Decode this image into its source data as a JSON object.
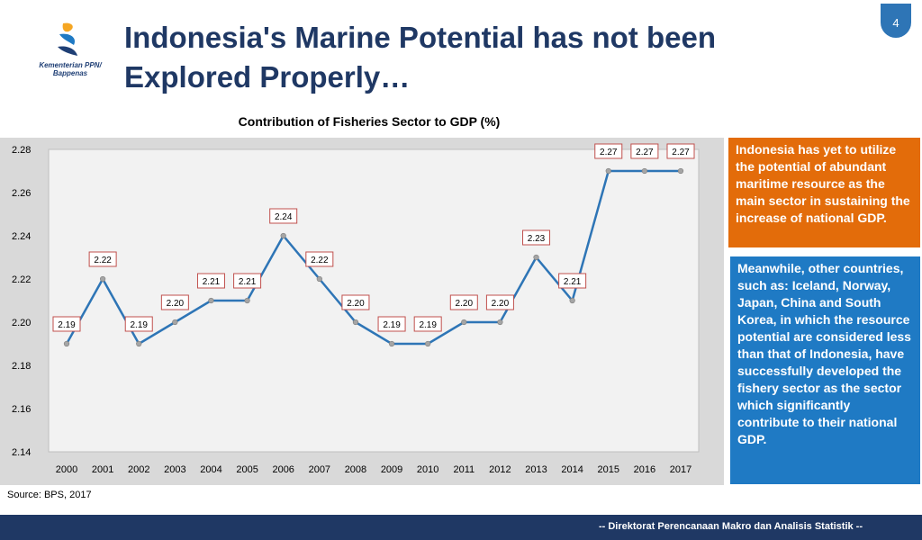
{
  "header": {
    "logo_text_line1": "Kementerian PPN/",
    "logo_text_line2": "Bappenas",
    "title": "Indonesia's Marine Potential has not been Explored Properly…",
    "page_number": "4"
  },
  "chart_data": {
    "type": "line",
    "title": "Contribution of Fisheries Sector to GDP (%)",
    "xlabel": "",
    "ylabel": "",
    "categories": [
      "2000",
      "2001",
      "2002",
      "2003",
      "2004",
      "2005",
      "2006",
      "2007",
      "2008",
      "2009",
      "2010",
      "2011",
      "2012",
      "2013",
      "2014",
      "2015",
      "2016",
      "2017"
    ],
    "values": [
      2.19,
      2.22,
      2.19,
      2.2,
      2.21,
      2.21,
      2.24,
      2.22,
      2.2,
      2.19,
      2.19,
      2.2,
      2.2,
      2.23,
      2.21,
      2.27,
      2.27,
      2.27
    ],
    "data_labels": [
      "2.19",
      "2.22",
      "2.19",
      "2.20",
      "2.21",
      "2.21",
      "2.24",
      "2.22",
      "2.20",
      "2.19",
      "2.19",
      "2.20",
      "2.20",
      "2.23",
      "2.21",
      "2.27",
      "2.27",
      "2.27"
    ],
    "ylim": [
      2.14,
      2.28
    ],
    "yticks": [
      "2.14",
      "2.16",
      "2.18",
      "2.20",
      "2.22",
      "2.24",
      "2.26",
      "2.28"
    ],
    "grid": false,
    "colors": {
      "line": "#2e75b6",
      "marker": "#a5a5a5",
      "label_border": "#c0504d"
    }
  },
  "sidebar": {
    "orange_text": "Indonesia has yet to utilize the potential of abundant maritime resource as the main sector in sustaining the increase of national GDP.",
    "blue_text": "Meanwhile, other countries, such as: Iceland, Norway, Japan, China and South Korea, in which the resource potential are considered less than that of Indonesia, have successfully developed the fishery sector as the sector which significantly contribute to their national GDP.",
    "colors": {
      "orange": "#e36c0a",
      "blue": "#1f7ac4"
    }
  },
  "source": "Source: BPS, 2017",
  "footer": {
    "text": "-- Direktorat Perencanaan Makro dan Analisis Statistik --",
    "color": "#1f3864"
  }
}
